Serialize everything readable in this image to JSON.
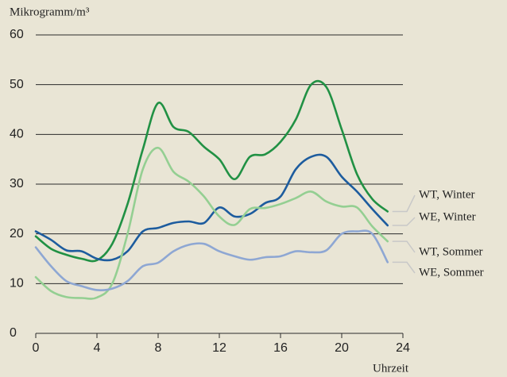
{
  "chart_data": {
    "type": "line",
    "y_label": "Mikrogramm/m³",
    "x_label": "Uhrzeit",
    "xlim": [
      0,
      24
    ],
    "xticks": [
      0,
      4,
      8,
      12,
      16,
      20,
      24
    ],
    "ylim": [
      0,
      60
    ],
    "yticks": [
      0,
      10,
      20,
      30,
      40,
      50,
      60
    ],
    "grid": true,
    "x": [
      0,
      1,
      2,
      3,
      4,
      5,
      6,
      7,
      8,
      9,
      10,
      11,
      12,
      13,
      14,
      15,
      16,
      17,
      18,
      19,
      20,
      21,
      22,
      23
    ],
    "series": [
      {
        "name": "WT, Winter",
        "color": "#219144",
        "values": [
          19.5,
          17,
          15.8,
          15,
          14.7,
          18,
          26,
          37,
          46.3,
          41.5,
          40.5,
          37.5,
          35,
          31,
          35.5,
          36,
          38.5,
          43,
          50,
          49.5,
          41,
          32,
          27,
          24.5
        ]
      },
      {
        "name": "WE, Winter",
        "color": "#1d5c9e",
        "values": [
          20.5,
          18.8,
          16.7,
          16.5,
          15,
          14.8,
          16.5,
          20.5,
          21.2,
          22.2,
          22.5,
          22.2,
          25.3,
          23.5,
          24,
          26.2,
          27.5,
          33,
          35.5,
          35.5,
          31.5,
          28.5,
          25,
          21.7
        ]
      },
      {
        "name": "WT, Sommer",
        "color": "#94cf92",
        "values": [
          11.3,
          8.5,
          7.3,
          7.1,
          7.2,
          10,
          20,
          33,
          37.3,
          32.5,
          30.5,
          27.5,
          23.5,
          21.8,
          25,
          25.2,
          26,
          27.2,
          28.5,
          26.5,
          25.5,
          25.3,
          21.5,
          18.5
        ]
      },
      {
        "name": "WE, Sommer",
        "color": "#8ea7d3",
        "values": [
          17.3,
          13.5,
          10.5,
          9.5,
          8.7,
          9,
          10.5,
          13.5,
          14.2,
          16.5,
          17.8,
          18,
          16.5,
          15.5,
          14.8,
          15.3,
          15.5,
          16.5,
          16.3,
          16.7,
          20,
          20.5,
          20,
          14.3
        ]
      }
    ]
  }
}
